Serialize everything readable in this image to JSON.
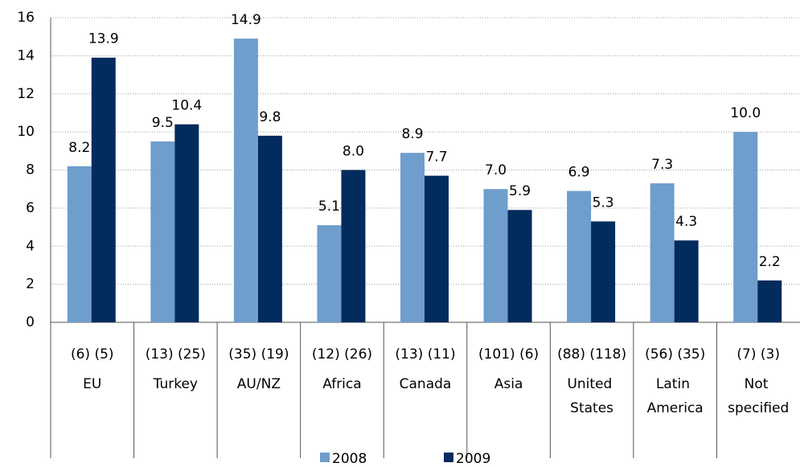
{
  "chart_data": {
    "type": "bar",
    "categories": [
      "EU",
      "Turkey",
      "AU/NZ",
      "Africa",
      "Canada",
      "Asia",
      "United States",
      "Latin America",
      "Not specified"
    ],
    "counts": [
      "(6) (5)",
      "(13) (25)",
      "(35) (19)",
      "(12) (26)",
      "(13) (11)",
      "(101) (6)",
      "(88) (118)",
      "(56) (35)",
      "(7) (3)"
    ],
    "series": [
      {
        "name": "2008",
        "color": "#6f9dcc",
        "values": [
          8.2,
          9.5,
          14.9,
          5.1,
          8.9,
          7.0,
          6.9,
          7.3,
          10.0
        ],
        "value_labels": [
          "8.2",
          "9.5",
          "14.9",
          "5.1",
          "8.9",
          "7.0",
          "6.9",
          "7.3",
          "10.0"
        ]
      },
      {
        "name": "2009",
        "color": "#022b5e",
        "values": [
          13.9,
          10.4,
          9.8,
          8.0,
          7.7,
          5.9,
          5.3,
          4.3,
          2.2
        ],
        "value_labels": [
          "13.9",
          "10.4",
          "9.8",
          "8.0",
          "7.7",
          "5.9",
          "5.3",
          "4.3",
          "2.2"
        ]
      }
    ],
    "ylim": [
      0,
      16
    ],
    "yticks": [
      0,
      2,
      4,
      6,
      8,
      10,
      12,
      14,
      16
    ],
    "grid": true,
    "legend": "bottom"
  }
}
